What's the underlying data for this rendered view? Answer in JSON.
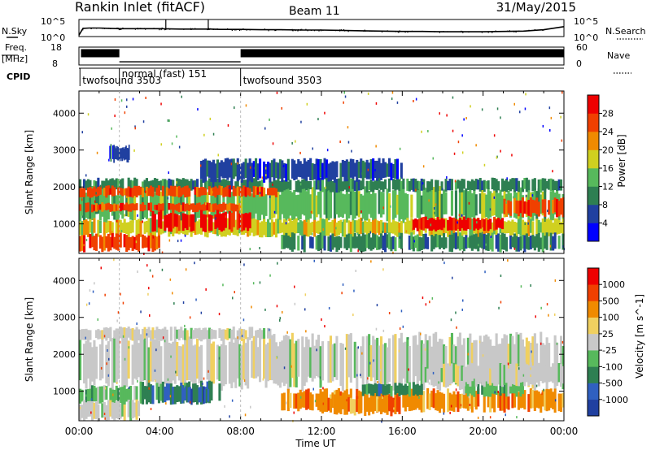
{
  "header": {
    "title": "Rankin Inlet (fitACF)",
    "beam": "Beam 11",
    "date": "31/May/2015"
  },
  "time_axis": {
    "ticks": [
      "00:00",
      "04:00",
      "08:00",
      "12:00",
      "16:00",
      "20:00",
      "00:00"
    ],
    "label": "Time UT"
  },
  "chart_data": [
    {
      "type": "line",
      "name": "noise-panel",
      "left_label": "N.Sky",
      "right_label": "N.Search",
      "left_ticks": [
        "10^5",
        "10^0"
      ],
      "right_ticks": [
        "10^5",
        "10^0"
      ],
      "x_hours": [
        0,
        0.2,
        0.5,
        1,
        1.5,
        2,
        3,
        4,
        5,
        6,
        6.5,
        7,
        8,
        9,
        10,
        11,
        12,
        13,
        14,
        15,
        16,
        17,
        18,
        19,
        20,
        21,
        22,
        23,
        24
      ],
      "sky_log": [
        0.4,
        2.4,
        2.5,
        2.5,
        2.4,
        2.3,
        2.3,
        2.3,
        2.2,
        2.2,
        2.2,
        2.1,
        2.1,
        2.0,
        2.0,
        1.9,
        1.9,
        1.8,
        1.7,
        1.6,
        1.5,
        1.5,
        1.4,
        1.4,
        1.4,
        1.5,
        1.6,
        2.0,
        2.9
      ],
      "spikes": [
        {
          "x": 4.3,
          "y": 5
        },
        {
          "x": 6.4,
          "y": 5
        }
      ]
    },
    {
      "type": "bar",
      "name": "frequency-panel",
      "left_label": "Freq.",
      "left_unit": "[MHz]",
      "left_ticks": [
        "18",
        "8"
      ],
      "right_label": "Nave",
      "right_ticks": [
        "60",
        "0"
      ],
      "segments": [
        {
          "start": 0.1,
          "end": 2.0,
          "level": 0.75
        },
        {
          "start": 2.0,
          "end": 8.0,
          "level": 0.18
        },
        {
          "start": 8.0,
          "end": 24.0,
          "level": 0.75
        }
      ]
    },
    {
      "type": "table",
      "name": "cpid-panel",
      "label": "CPID",
      "modes": [
        {
          "start": 0.05,
          "label": "twofsound 3503"
        },
        {
          "start": 2.0,
          "label": "normal (fast) 151"
        },
        {
          "start": 8.0,
          "label": "twofsound 3503"
        }
      ]
    },
    {
      "type": "heatmap",
      "name": "power-panel",
      "ylabel": "Slant Range [km]",
      "yticks": [
        1000,
        2000,
        3000,
        4000
      ],
      "ylim": [
        200,
        4600
      ],
      "colorbar_label": "Power [dB]",
      "colorbar_ticks": [
        "4",
        "8",
        "12",
        "16",
        "20",
        "24",
        "28"
      ],
      "colors": [
        "#0000ff",
        "#2040a0",
        "#2e7f52",
        "#57b95c",
        "#d0d020",
        "#f08a00",
        "#f04000",
        "#ee0000"
      ],
      "bands": [
        {
          "t0": 0.0,
          "t1": 24.0,
          "r0": 1150,
          "r1": 1900,
          "level": 3
        },
        {
          "t0": 0.0,
          "t1": 24.0,
          "r0": 1900,
          "r1": 2200,
          "level": 2
        },
        {
          "t0": 0.0,
          "t1": 10.0,
          "r0": 1750,
          "r1": 2000,
          "level": 6
        },
        {
          "t0": 0.0,
          "t1": 8.0,
          "r0": 1350,
          "r1": 1550,
          "level": 6
        },
        {
          "t0": 0.0,
          "t1": 24.0,
          "r0": 700,
          "r1": 1100,
          "level": 4
        },
        {
          "t0": 3.5,
          "t1": 8.5,
          "r0": 850,
          "r1": 1300,
          "level": 7
        },
        {
          "t0": 16.5,
          "t1": 21.0,
          "r0": 850,
          "r1": 1150,
          "level": 7
        },
        {
          "t0": 21.0,
          "t1": 24.0,
          "r0": 1250,
          "r1": 1650,
          "level": 6
        },
        {
          "t0": 0.0,
          "t1": 4.0,
          "r0": 300,
          "r1": 700,
          "level": 6
        },
        {
          "t0": 10.0,
          "t1": 24.0,
          "r0": 300,
          "r1": 700,
          "level": 2
        },
        {
          "t0": 6.0,
          "t1": 16.0,
          "r0": 2200,
          "r1": 2700,
          "level": 1
        },
        {
          "t0": 1.5,
          "t1": 2.5,
          "r0": 2700,
          "r1": 3100,
          "level": 1
        }
      ]
    },
    {
      "type": "heatmap",
      "name": "velocity-panel",
      "ylabel": "Slant Range [km]",
      "yticks": [
        1000,
        2000,
        3000,
        4000
      ],
      "ylim": [
        200,
        4600
      ],
      "colorbar_label": "Velocity [m s^-1]",
      "colorbar_ticks": [
        "1000",
        "500",
        "100",
        "25",
        "-25",
        "-100",
        "-500",
        "-1000"
      ],
      "colors": [
        "#2040a0",
        "#3060c0",
        "#2e7f52",
        "#57b95c",
        "#c8c8c8",
        "#f0d060",
        "#f08a00",
        "#f04000",
        "#ee0000"
      ],
      "bands": [
        {
          "t0": 0.0,
          "t1": 24.0,
          "r0": 1200,
          "r1": 2400,
          "level": 4
        },
        {
          "t0": 0.0,
          "t1": 9.5,
          "r0": 2400,
          "r1": 2700,
          "level": 4
        },
        {
          "t0": 3.0,
          "t1": 7.0,
          "r0": 700,
          "r1": 1200,
          "level": 2
        },
        {
          "t0": 5.0,
          "t1": 6.5,
          "r0": 700,
          "r1": 1100,
          "level": 1
        },
        {
          "t0": 0.0,
          "t1": 3.0,
          "r0": 700,
          "r1": 1100,
          "level": 3
        },
        {
          "t0": 10.0,
          "t1": 24.0,
          "r0": 500,
          "r1": 1000,
          "level": 6
        },
        {
          "t0": 12.0,
          "t1": 16.0,
          "r0": 400,
          "r1": 850,
          "level": 6
        },
        {
          "t0": 14.0,
          "t1": 17.0,
          "r0": 900,
          "r1": 1200,
          "level": 2
        },
        {
          "t0": 19.0,
          "t1": 22.0,
          "r0": 900,
          "r1": 1300,
          "level": 3
        },
        {
          "t0": 0.0,
          "t1": 3.0,
          "r0": 250,
          "r1": 700,
          "level": 4
        },
        {
          "t0": 17.0,
          "t1": 24.0,
          "r0": 1200,
          "r1": 1700,
          "level": 4
        }
      ]
    }
  ]
}
